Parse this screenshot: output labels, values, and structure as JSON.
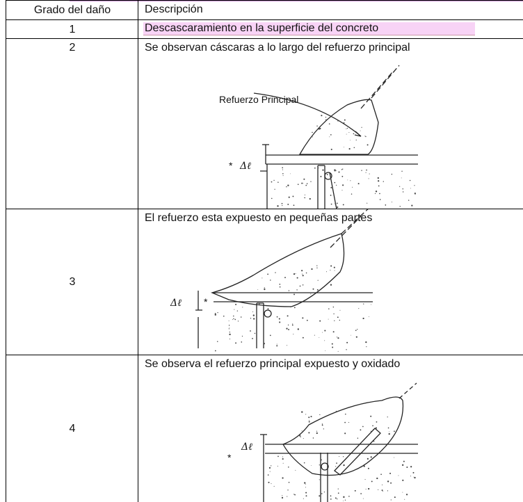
{
  "table": {
    "header": [
      "Grado del daño",
      "Descripción"
    ],
    "rows": [
      {
        "grade": "1",
        "description": "Descascaramiento  en la superficie del concreto"
      },
      {
        "grade": "2",
        "description": "Se observan cáscaras a lo largo del refuerzo principal",
        "diagram": {
          "label": "Refuerzo Principal",
          "marker": "*",
          "dimension": "Δℓ"
        }
      },
      {
        "grade": "3",
        "description": "El refuerzo esta expuesto en pequeñas partes",
        "diagram": {
          "marker": "*",
          "dimension": "Δℓ"
        }
      },
      {
        "grade": "4",
        "description": "Se observa el refuerzo principal expuesto y oxidado",
        "diagram": {
          "marker": "*",
          "dimension": "Δℓ"
        }
      }
    ]
  }
}
